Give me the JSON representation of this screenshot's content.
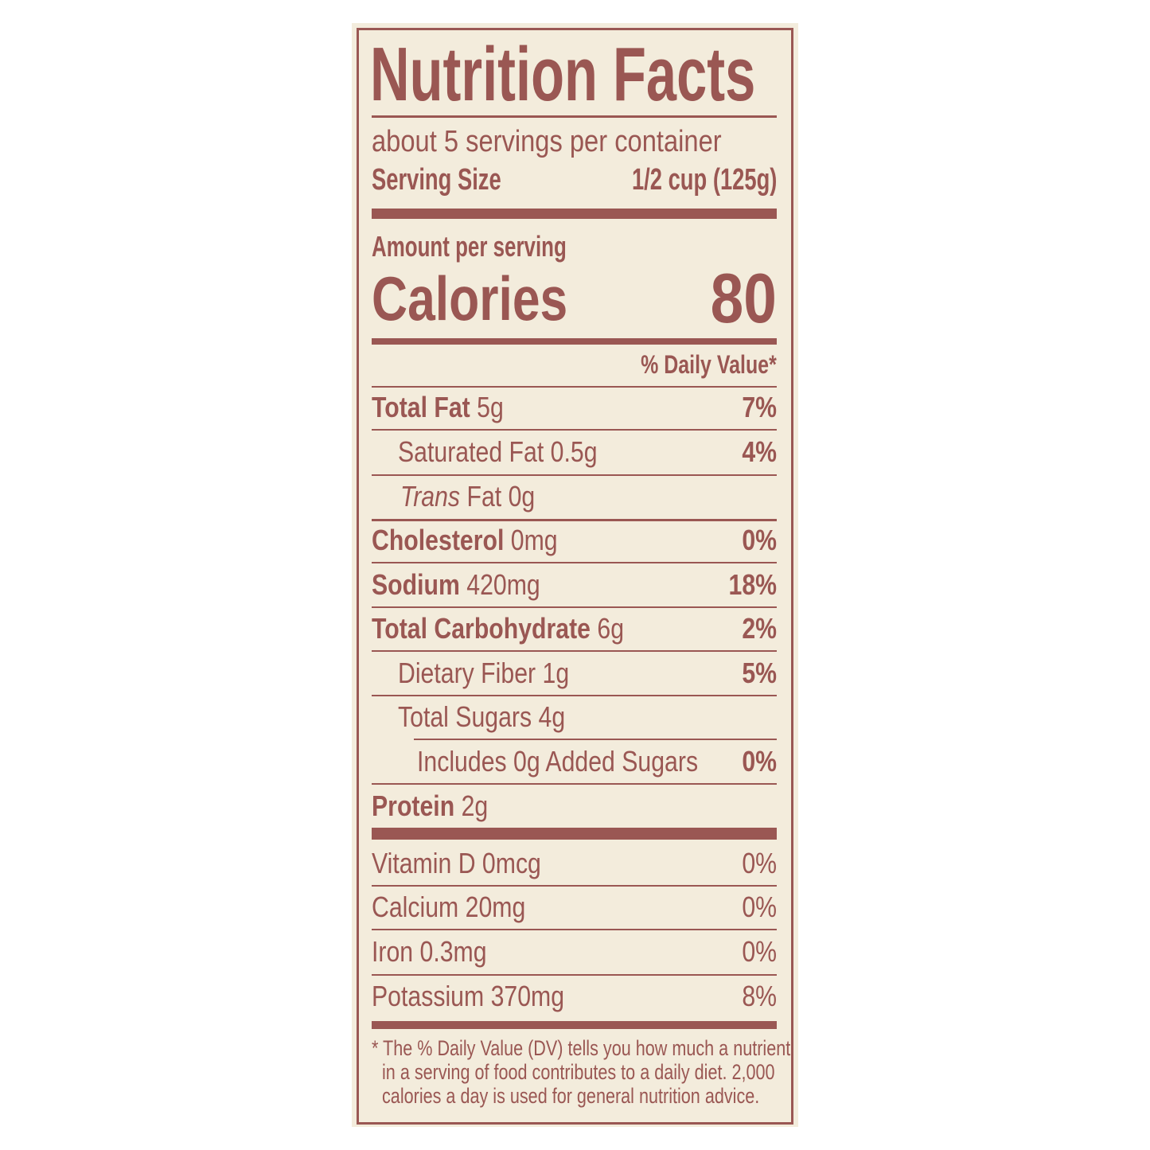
{
  "title": "Nutrition Facts",
  "servings_per_container": "about 5 servings per container",
  "serving_size": {
    "label": "Serving Size",
    "value": "1/2 cup (125g)"
  },
  "amount_per_serving": "Amount per serving",
  "calories": {
    "label": "Calories",
    "value": "80"
  },
  "dv_header": "% Daily Value*",
  "nutrients": [
    {
      "label": "Total Fat",
      "amount": "5g",
      "dv": "7%"
    },
    {
      "label": "Saturated Fat",
      "amount": "0.5g",
      "dv": "4%"
    },
    {
      "label": "Trans",
      "label_suffix": "Fat",
      "amount": "0g",
      "dv": ""
    },
    {
      "label": "Cholesterol",
      "amount": "0mg",
      "dv": "0%"
    },
    {
      "label": "Sodium",
      "amount": "420mg",
      "dv": "18%"
    },
    {
      "label": "Total Carbohydrate",
      "amount": "6g",
      "dv": "2%"
    },
    {
      "label": "Dietary Fiber",
      "amount": "1g",
      "dv": "5%"
    },
    {
      "label": "Total Sugars",
      "amount": "4g",
      "dv": ""
    },
    {
      "label": "Includes 0g Added Sugars",
      "amount": "",
      "dv": "0%"
    },
    {
      "label": "Protein",
      "amount": "2g",
      "dv": ""
    }
  ],
  "vitamins": [
    {
      "label": "Vitamin D 0mcg",
      "dv": "0%"
    },
    {
      "label": "Calcium 20mg",
      "dv": "0%"
    },
    {
      "label": "Iron 0.3mg",
      "dv": "0%"
    },
    {
      "label": "Potassium 370mg",
      "dv": "8%"
    }
  ],
  "footnote": [
    "* The % Daily Value (DV) tells you how much a nutrient",
    "in a serving of food contributes to a daily diet. 2,000",
    "calories a day is used for general nutrition advice."
  ],
  "colors": {
    "ink": "#9a5753",
    "paper": "#f3ecdc"
  }
}
